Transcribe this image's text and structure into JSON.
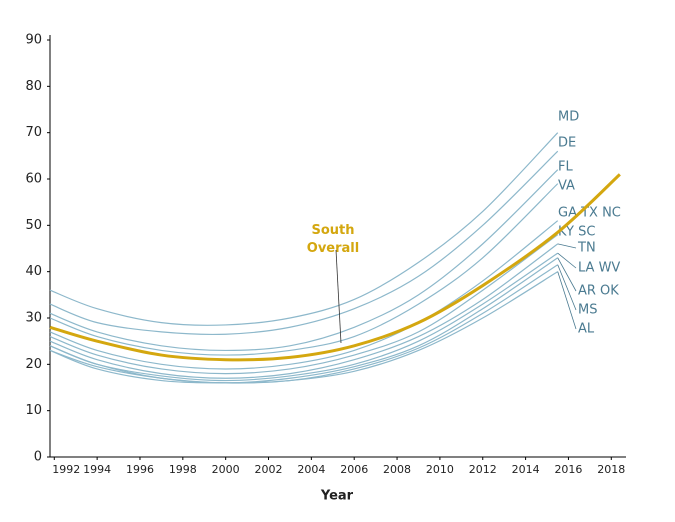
{
  "chart_data": {
    "type": "line",
    "x_label": "Year",
    "annotation": "South Overall",
    "x": [
      1991.8,
      1994,
      1997,
      2000,
      2003,
      2006,
      2009,
      2012,
      2015.5,
      2018.4
    ],
    "xlim": [
      1991.8,
      2018.5
    ],
    "xticks": [
      1992,
      1994,
      1996,
      1998,
      2000,
      2002,
      2004,
      2006,
      2008,
      2010,
      2012,
      2014,
      2016,
      2018
    ],
    "ylim": [
      0,
      90
    ],
    "yticks": [
      0,
      10,
      20,
      30,
      40,
      50,
      60,
      70,
      80,
      90
    ],
    "grid": false,
    "series": [
      {
        "name": "MD",
        "color": "#8db8cb",
        "values": [
          36,
          32,
          29,
          28.5,
          30,
          34,
          42,
          53,
          70,
          null
        ]
      },
      {
        "name": "DE",
        "color": "#8db8cb",
        "values": [
          33,
          29,
          27,
          26.5,
          28,
          32,
          39,
          50,
          66,
          null
        ]
      },
      {
        "name": "FL",
        "color": "#8db8cb",
        "values": [
          31,
          27,
          24,
          23,
          24,
          28,
          35,
          46,
          62,
          null
        ]
      },
      {
        "name": "VA",
        "color": "#8db8cb",
        "values": [
          30,
          26,
          23,
          22,
          23,
          26,
          33,
          43,
          59,
          null
        ]
      },
      {
        "name": "GA TX NC",
        "color": "#8db8cb",
        "values": [
          27,
          23,
          20,
          19,
          20,
          23,
          29,
          38,
          51,
          null
        ]
      },
      {
        "name": "KY SC",
        "color": "#8db8cb",
        "values": [
          26,
          22,
          19,
          18,
          19,
          22,
          27,
          36,
          48,
          null
        ]
      },
      {
        "name": "TN",
        "color": "#8db8cb",
        "values": [
          25,
          21,
          18,
          17,
          18,
          21,
          26,
          34,
          46,
          null
        ]
      },
      {
        "name": "LA WV",
        "color": "#8db8cb",
        "values": [
          24,
          20,
          17.5,
          16.5,
          17.5,
          20,
          25,
          33,
          44,
          null
        ]
      },
      {
        "name": "AR OK",
        "color": "#8db8cb",
        "values": [
          24,
          20,
          17,
          16,
          17,
          19.5,
          24,
          32,
          43,
          null
        ]
      },
      {
        "name": "MS",
        "color": "#8db8cb",
        "values": [
          23,
          19.5,
          17,
          16,
          16.5,
          19,
          23.5,
          31,
          41.5,
          null
        ]
      },
      {
        "name": "AL",
        "color": "#8db8cb",
        "values": [
          23,
          19,
          16.5,
          16,
          16.5,
          18.5,
          23,
          30,
          40,
          null
        ]
      },
      {
        "name": "South Overall",
        "color": "#d4a70f",
        "values": [
          28,
          25,
          22,
          21,
          21.5,
          24,
          29,
          37,
          48.5,
          61
        ]
      }
    ]
  }
}
